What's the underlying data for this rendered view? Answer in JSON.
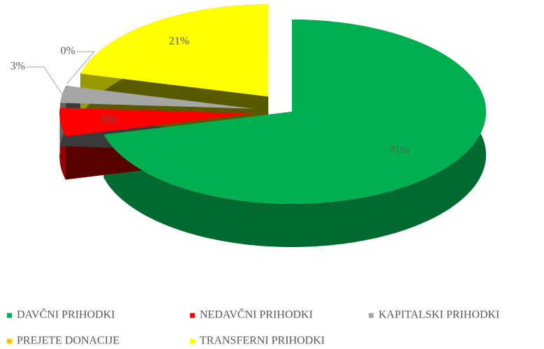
{
  "chart_data": {
    "type": "pie",
    "categories": [
      "DAVČNI PRIHODKI",
      "NEDAVČNI PRIHODKI",
      "KAPITALSKI PRIHODKI",
      "PREJETE DONACIJE",
      "TRANSFERNI PRIHODKI"
    ],
    "values": [
      71,
      5,
      3,
      0,
      21
    ],
    "value_labels": [
      "71%",
      "5%",
      "3%",
      "0%",
      "21%"
    ],
    "colors": [
      "#00b050",
      "#ff0000",
      "#a6a6a6",
      "#ffc000",
      "#ffff00"
    ],
    "legend": "bottom"
  }
}
